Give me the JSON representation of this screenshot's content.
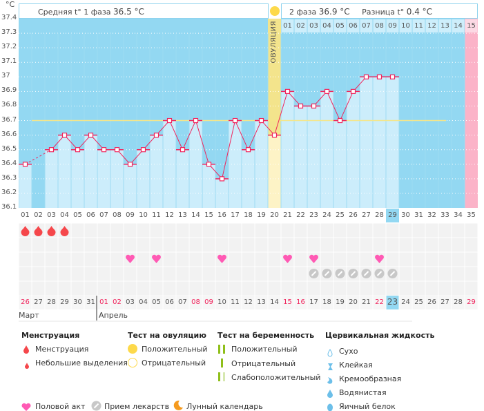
{
  "unit_label": "°C",
  "header": {
    "phase1_label": "Средняя t° 1 фаза",
    "phase1_value": "36.5 °C",
    "phase2_label": "2 фаза",
    "phase2_value": "36.9 °C",
    "diff_label": "Разница t°",
    "diff_value": "0.4 °C",
    "ovulation_label": "ОВУЛЯЦИЯ"
  },
  "chart_data": {
    "type": "bar",
    "title": "",
    "ylabel": "°C",
    "ylim": [
      36.1,
      37.4
    ],
    "yticks": [
      "37.4",
      "37.3",
      "37.2",
      "37.1",
      "37",
      "36.9",
      "36.8",
      "36.7",
      "36.6",
      "36.5",
      "36.4",
      "36.3",
      "36.2",
      "36.1"
    ],
    "cycle_days": [
      "01",
      "02",
      "03",
      "04",
      "05",
      "06",
      "07",
      "08",
      "09",
      "10",
      "11",
      "12",
      "13",
      "14",
      "15",
      "16",
      "17",
      "18",
      "19",
      "20",
      "21",
      "22",
      "23",
      "24",
      "25",
      "26",
      "27",
      "28",
      "29",
      "30",
      "31",
      "32",
      "33",
      "34",
      "35"
    ],
    "temperatures": [
      36.4,
      null,
      36.5,
      36.6,
      36.5,
      36.6,
      36.5,
      36.5,
      36.4,
      36.5,
      36.6,
      36.7,
      36.5,
      36.7,
      36.4,
      36.3,
      36.7,
      36.5,
      36.7,
      36.6,
      36.9,
      36.8,
      36.8,
      36.9,
      36.7,
      36.9,
      37.0,
      37.0,
      37.0,
      null,
      null,
      null,
      null,
      null,
      null
    ],
    "coverline": 36.7,
    "ovulation_day": 20,
    "phase2_days": [
      "01",
      "02",
      "03",
      "04",
      "05",
      "06",
      "07",
      "08",
      "09",
      "10",
      "11",
      "12",
      "13",
      "14",
      "15"
    ],
    "today_day": 29,
    "expected_period_day": 35
  },
  "calendar": {
    "dates": [
      "26",
      "27",
      "28",
      "29",
      "30",
      "31",
      "01",
      "02",
      "03",
      "04",
      "05",
      "06",
      "07",
      "08",
      "09",
      "10",
      "11",
      "12",
      "13",
      "14",
      "15",
      "16",
      "17",
      "18",
      "19",
      "20",
      "21",
      "22",
      "23",
      "24",
      "25",
      "26",
      "27",
      "28",
      "29"
    ],
    "red_dates": [
      1,
      7,
      8,
      14,
      15,
      21,
      22,
      28,
      35
    ],
    "months": [
      "Март",
      "Апрель"
    ],
    "menstruation_days": [
      1,
      2,
      3,
      4
    ],
    "intercourse_days": [
      9,
      11,
      16,
      21,
      23,
      28
    ],
    "medication_days": [
      23,
      24,
      25,
      26,
      27,
      28,
      29
    ]
  },
  "legend": {
    "menstruation": {
      "title": "Менструация",
      "items": [
        "Менструация",
        "Небольшие выделения"
      ]
    },
    "ovulation_test": {
      "title": "Тест на овуляцию",
      "items": [
        "Положительный",
        "Отрицательный"
      ]
    },
    "pregnancy_test": {
      "title": "Тест на беременность",
      "items": [
        "Положительный",
        "Отрицательный",
        "Слабоположительный"
      ]
    },
    "cervical": {
      "title": "Цервикальная жидкость",
      "items": [
        "Сухо",
        "Клейкая",
        "Кремообразная",
        "Водянистая",
        "Яичный белок"
      ]
    },
    "other": [
      "Половой акт",
      "Прием лекарств",
      "Лунный календарь"
    ]
  },
  "colors": {
    "bg": "#93d8f2",
    "bar": "#ccedfb",
    "line": "#f0245c",
    "coverline": "#f5e68a",
    "ovulation": "#f3e48c",
    "pink": "#fbb3c8",
    "drop": "#f5474b",
    "heart": "#ff5ab4",
    "pill": "#c8c8c8"
  }
}
